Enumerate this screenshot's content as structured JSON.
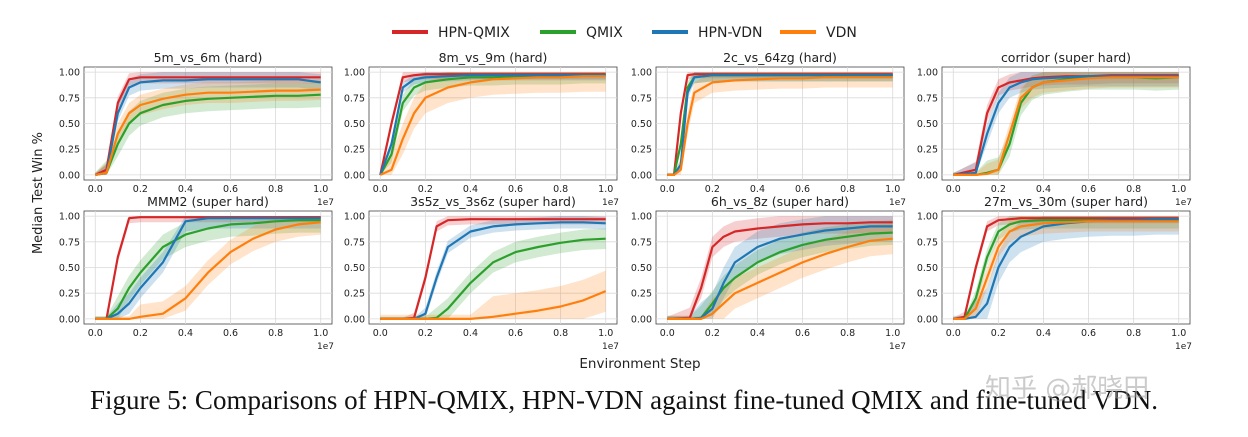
{
  "caption": "Figure 5: Comparisons of HPN-QMIX, HPN-VDN against fine-tuned QMIX and fine-tuned VDN.",
  "watermark": "知乎 @郝晓田",
  "legend": [
    {
      "name": "HPN-QMIX",
      "color": "#d62728"
    },
    {
      "name": "QMIX",
      "color": "#2ca02c"
    },
    {
      "name": "HPN-VDN",
      "color": "#1f77b4"
    },
    {
      "name": "VDN",
      "color": "#ff7f0e"
    }
  ],
  "shared_axes": {
    "xlabel": "Environment Step",
    "ylabel": "Median Test Win %",
    "x_ticks": [
      "0.0",
      "0.2",
      "0.4",
      "0.6",
      "0.8",
      "1.0"
    ],
    "x_multiplier": "1e7",
    "y_ticks": [
      "0.00",
      "0.25",
      "0.50",
      "0.75",
      "1.00"
    ],
    "xlim": [
      0,
      1.0
    ],
    "ylim": [
      0,
      1.0
    ],
    "grid": true
  },
  "chart_data": [
    {
      "type": "line",
      "title": "5m_vs_6m (hard)",
      "x": [
        0,
        0.05,
        0.1,
        0.15,
        0.2,
        0.3,
        0.4,
        0.5,
        0.6,
        0.7,
        0.8,
        0.9,
        1.0
      ],
      "series": [
        {
          "name": "HPN-QMIX",
          "values": [
            0,
            0.05,
            0.7,
            0.93,
            0.95,
            0.95,
            0.95,
            0.95,
            0.95,
            0.95,
            0.95,
            0.95,
            0.95
          ],
          "band": 0.06
        },
        {
          "name": "QMIX",
          "values": [
            0,
            0.02,
            0.3,
            0.5,
            0.6,
            0.68,
            0.72,
            0.74,
            0.75,
            0.76,
            0.77,
            0.77,
            0.78
          ],
          "band": 0.12
        },
        {
          "name": "HPN-VDN",
          "values": [
            0,
            0.02,
            0.6,
            0.85,
            0.9,
            0.92,
            0.92,
            0.93,
            0.93,
            0.93,
            0.93,
            0.93,
            0.9
          ],
          "band": 0.08
        },
        {
          "name": "VDN",
          "values": [
            0,
            0.02,
            0.4,
            0.6,
            0.68,
            0.74,
            0.78,
            0.8,
            0.8,
            0.81,
            0.82,
            0.82,
            0.83
          ],
          "band": 0.1
        }
      ]
    },
    {
      "type": "line",
      "title": "8m_vs_9m (hard)",
      "x": [
        0,
        0.05,
        0.1,
        0.15,
        0.2,
        0.3,
        0.4,
        0.5,
        0.6,
        0.7,
        0.8,
        0.9,
        1.0
      ],
      "series": [
        {
          "name": "HPN-QMIX",
          "values": [
            0,
            0.5,
            0.95,
            0.97,
            0.98,
            0.98,
            0.98,
            0.98,
            0.98,
            0.98,
            0.98,
            0.98,
            0.98
          ],
          "band": 0.05
        },
        {
          "name": "QMIX",
          "values": [
            0,
            0.2,
            0.7,
            0.85,
            0.9,
            0.93,
            0.95,
            0.95,
            0.96,
            0.96,
            0.96,
            0.97,
            0.97
          ],
          "band": 0.08
        },
        {
          "name": "HPN-VDN",
          "values": [
            0,
            0.3,
            0.85,
            0.93,
            0.95,
            0.96,
            0.97,
            0.97,
            0.97,
            0.97,
            0.97,
            0.97,
            0.97
          ],
          "band": 0.05
        },
        {
          "name": "VDN",
          "values": [
            0,
            0.05,
            0.35,
            0.6,
            0.75,
            0.85,
            0.9,
            0.93,
            0.94,
            0.95,
            0.95,
            0.96,
            0.96
          ],
          "band": 0.15
        }
      ]
    },
    {
      "type": "line",
      "title": "2c_vs_64zg (hard)",
      "x": [
        0,
        0.03,
        0.06,
        0.09,
        0.12,
        0.2,
        0.3,
        0.4,
        0.5,
        0.6,
        0.7,
        0.8,
        0.9,
        1.0
      ],
      "series": [
        {
          "name": "HPN-QMIX",
          "values": [
            0,
            0,
            0.6,
            0.97,
            0.98,
            0.98,
            0.98,
            0.98,
            0.98,
            0.98,
            0.98,
            0.98,
            0.98,
            0.98
          ],
          "band": 0.04
        },
        {
          "name": "QMIX",
          "values": [
            0,
            0,
            0.3,
            0.85,
            0.95,
            0.97,
            0.97,
            0.97,
            0.97,
            0.97,
            0.97,
            0.97,
            0.97,
            0.97
          ],
          "band": 0.06
        },
        {
          "name": "HPN-VDN",
          "values": [
            0,
            0,
            0.1,
            0.8,
            0.95,
            0.97,
            0.97,
            0.97,
            0.97,
            0.97,
            0.97,
            0.97,
            0.97,
            0.97
          ],
          "band": 0.06
        },
        {
          "name": "VDN",
          "values": [
            0,
            0,
            0.05,
            0.5,
            0.8,
            0.9,
            0.92,
            0.93,
            0.94,
            0.94,
            0.95,
            0.95,
            0.95,
            0.95
          ],
          "band": 0.1
        }
      ]
    },
    {
      "type": "line",
      "title": "corridor (super hard)",
      "x": [
        0,
        0.1,
        0.15,
        0.2,
        0.25,
        0.3,
        0.35,
        0.4,
        0.5,
        0.6,
        0.7,
        0.8,
        0.9,
        1.0
      ],
      "series": [
        {
          "name": "HPN-QMIX",
          "values": [
            0,
            0.05,
            0.6,
            0.85,
            0.9,
            0.92,
            0.94,
            0.95,
            0.96,
            0.96,
            0.97,
            0.97,
            0.97,
            0.97
          ],
          "band": 0.08
        },
        {
          "name": "QMIX",
          "values": [
            0,
            0,
            0.02,
            0.05,
            0.3,
            0.7,
            0.85,
            0.9,
            0.93,
            0.95,
            0.95,
            0.95,
            0.94,
            0.95
          ],
          "band": 0.12
        },
        {
          "name": "HPN-VDN",
          "values": [
            0,
            0.02,
            0.4,
            0.7,
            0.85,
            0.9,
            0.93,
            0.94,
            0.95,
            0.96,
            0.96,
            0.96,
            0.96,
            0.96
          ],
          "band": 0.1
        },
        {
          "name": "VDN",
          "values": [
            0,
            0,
            0.01,
            0.05,
            0.4,
            0.75,
            0.85,
            0.9,
            0.92,
            0.94,
            0.95,
            0.95,
            0.95,
            0.95
          ],
          "band": 0.1
        }
      ]
    },
    {
      "type": "line",
      "title": "MMM2 (super hard)",
      "x": [
        0,
        0.05,
        0.1,
        0.15,
        0.2,
        0.3,
        0.4,
        0.5,
        0.6,
        0.7,
        0.8,
        0.9,
        1.0
      ],
      "series": [
        {
          "name": "HPN-QMIX",
          "values": [
            0,
            0,
            0.6,
            0.98,
            0.99,
            0.99,
            0.99,
            0.99,
            0.99,
            0.99,
            0.99,
            0.99,
            0.99
          ],
          "band": 0.05
        },
        {
          "name": "QMIX",
          "values": [
            0,
            0,
            0.1,
            0.3,
            0.45,
            0.7,
            0.82,
            0.88,
            0.92,
            0.93,
            0.95,
            0.96,
            0.96
          ],
          "band": 0.12
        },
        {
          "name": "HPN-VDN",
          "values": [
            0,
            0,
            0.05,
            0.15,
            0.3,
            0.55,
            0.95,
            0.98,
            0.98,
            0.98,
            0.98,
            0.98,
            0.98
          ],
          "band": 0.1
        },
        {
          "name": "VDN",
          "values": [
            0,
            0,
            0,
            0,
            0.02,
            0.05,
            0.2,
            0.45,
            0.65,
            0.78,
            0.87,
            0.92,
            0.94
          ],
          "band": 0.12
        }
      ]
    },
    {
      "type": "line",
      "title": "3s5z_vs_3s6z (super hard)",
      "x": [
        0,
        0.1,
        0.15,
        0.2,
        0.25,
        0.3,
        0.4,
        0.5,
        0.6,
        0.7,
        0.8,
        0.9,
        1.0
      ],
      "series": [
        {
          "name": "HPN-QMIX",
          "values": [
            0,
            0,
            0.01,
            0.4,
            0.9,
            0.96,
            0.97,
            0.97,
            0.97,
            0.97,
            0.97,
            0.97,
            0.97
          ],
          "band": 0.05
        },
        {
          "name": "QMIX",
          "values": [
            0,
            0,
            0,
            0,
            0.01,
            0.1,
            0.35,
            0.55,
            0.65,
            0.7,
            0.74,
            0.77,
            0.78
          ],
          "band": 0.1
        },
        {
          "name": "HPN-VDN",
          "values": [
            0,
            0,
            0,
            0.05,
            0.4,
            0.7,
            0.85,
            0.9,
            0.92,
            0.93,
            0.94,
            0.94,
            0.93
          ],
          "band": 0.06
        },
        {
          "name": "VDN",
          "values": [
            0,
            0,
            0,
            0,
            0,
            0,
            0,
            0.02,
            0.05,
            0.08,
            0.12,
            0.18,
            0.27
          ],
          "band": 0.2
        }
      ]
    },
    {
      "type": "line",
      "title": "6h_vs_8z (super hard)",
      "x": [
        0,
        0.1,
        0.15,
        0.2,
        0.25,
        0.3,
        0.4,
        0.5,
        0.6,
        0.7,
        0.8,
        0.9,
        1.0
      ],
      "series": [
        {
          "name": "HPN-QMIX",
          "values": [
            0,
            0.01,
            0.3,
            0.7,
            0.8,
            0.85,
            0.88,
            0.9,
            0.92,
            0.93,
            0.93,
            0.94,
            0.94
          ],
          "band": 0.1
        },
        {
          "name": "QMIX",
          "values": [
            0,
            0,
            0.01,
            0.15,
            0.3,
            0.4,
            0.55,
            0.65,
            0.72,
            0.77,
            0.8,
            0.83,
            0.84
          ],
          "band": 0.12
        },
        {
          "name": "HPN-VDN",
          "values": [
            0,
            0,
            0.01,
            0.1,
            0.35,
            0.55,
            0.7,
            0.78,
            0.82,
            0.86,
            0.88,
            0.9,
            0.9
          ],
          "band": 0.15
        },
        {
          "name": "VDN",
          "values": [
            0,
            0,
            0,
            0.05,
            0.15,
            0.25,
            0.35,
            0.45,
            0.55,
            0.63,
            0.7,
            0.76,
            0.78
          ],
          "band": 0.15
        }
      ]
    },
    {
      "type": "line",
      "title": "27m_vs_30m (super hard)",
      "x": [
        0,
        0.05,
        0.1,
        0.15,
        0.2,
        0.25,
        0.3,
        0.4,
        0.5,
        0.6,
        0.7,
        0.8,
        0.9,
        1.0
      ],
      "series": [
        {
          "name": "HPN-QMIX",
          "values": [
            0,
            0.02,
            0.5,
            0.9,
            0.96,
            0.97,
            0.98,
            0.98,
            0.98,
            0.98,
            0.98,
            0.98,
            0.98,
            0.98
          ],
          "band": 0.05
        },
        {
          "name": "QMIX",
          "values": [
            0,
            0,
            0.2,
            0.6,
            0.85,
            0.92,
            0.95,
            0.96,
            0.96,
            0.96,
            0.96,
            0.96,
            0.96,
            0.96
          ],
          "band": 0.08
        },
        {
          "name": "HPN-VDN",
          "values": [
            0,
            0,
            0.02,
            0.15,
            0.5,
            0.7,
            0.8,
            0.9,
            0.93,
            0.95,
            0.96,
            0.96,
            0.97,
            0.97
          ],
          "band": 0.15
        },
        {
          "name": "VDN",
          "values": [
            0,
            0,
            0.1,
            0.4,
            0.7,
            0.85,
            0.9,
            0.93,
            0.94,
            0.95,
            0.95,
            0.95,
            0.95,
            0.95
          ],
          "band": 0.1
        }
      ]
    }
  ]
}
